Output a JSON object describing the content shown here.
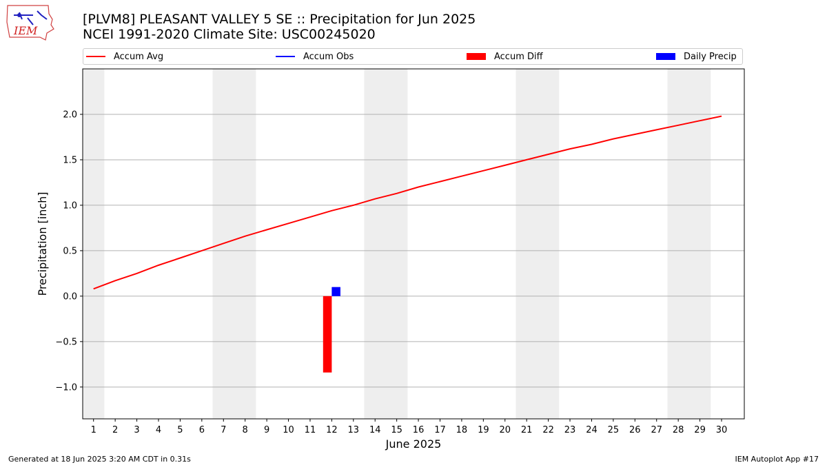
{
  "header": {
    "logo_text": "IEM",
    "title_line1": "[PLVM8] PLEASANT VALLEY 5 SE :: Precipitation for Jun 2025",
    "title_line2": "NCEI 1991-2020 Climate Site: USC00245020"
  },
  "legend": {
    "items": [
      {
        "label": "Accum Avg",
        "kind": "line",
        "color": "#ff0000"
      },
      {
        "label": "Accum Obs",
        "kind": "line",
        "color": "#0000ff"
      },
      {
        "label": "Accum Diff",
        "kind": "bar",
        "color": "#ff0000"
      },
      {
        "label": "Daily Precip",
        "kind": "bar",
        "color": "#0000ff"
      }
    ]
  },
  "chart_data": {
    "type": "line",
    "xlabel": "June 2025",
    "ylabel": "Precipitation [inch]",
    "ylim": [
      -1.35,
      2.5
    ],
    "yticks": [
      -1.0,
      -0.5,
      0.0,
      0.5,
      1.0,
      1.5,
      2.0
    ],
    "ytick_labels": [
      "−1.0",
      "−0.5",
      "0.0",
      "0.5",
      "1.0",
      "1.5",
      "2.0"
    ],
    "xlim": [
      0.5,
      31.05
    ],
    "days": [
      1,
      2,
      3,
      4,
      5,
      6,
      7,
      8,
      9,
      10,
      11,
      12,
      13,
      14,
      15,
      16,
      17,
      18,
      19,
      20,
      21,
      22,
      23,
      24,
      25,
      26,
      27,
      28,
      29,
      30
    ],
    "weekend_day_ranges": [
      [
        0.5,
        1.5
      ],
      [
        6.5,
        8.5
      ],
      [
        13.5,
        15.5
      ],
      [
        20.5,
        22.5
      ],
      [
        27.5,
        29.5
      ]
    ],
    "grid": "horizontal",
    "series": [
      {
        "name": "Accum Avg",
        "color": "#ff0000",
        "x": [
          1,
          2,
          3,
          4,
          5,
          6,
          7,
          8,
          9,
          10,
          11,
          12,
          13,
          14,
          15,
          16,
          17,
          18,
          19,
          20,
          21,
          22,
          23,
          24,
          25,
          26,
          27,
          28,
          29,
          30
        ],
        "values": [
          0.08,
          0.17,
          0.25,
          0.34,
          0.42,
          0.5,
          0.58,
          0.66,
          0.73,
          0.8,
          0.87,
          0.94,
          1.0,
          1.07,
          1.13,
          1.2,
          1.26,
          1.32,
          1.38,
          1.44,
          1.5,
          1.56,
          1.62,
          1.67,
          1.73,
          1.78,
          1.83,
          1.88,
          1.93,
          1.98
        ]
      },
      {
        "name": "Accum Obs",
        "color": "#0000ff",
        "x": [],
        "values": []
      }
    ],
    "bars": [
      {
        "name": "Accum Diff",
        "color": "#ff0000",
        "x": [
          11.8
        ],
        "values": [
          -0.84
        ]
      },
      {
        "name": "Daily Precip",
        "color": "#0000ff",
        "x": [
          12.2
        ],
        "values": [
          0.1
        ]
      }
    ]
  },
  "footer": {
    "left": "Generated at 18 Jun 2025 3:20 AM CDT in 0.31s",
    "right": "IEM Autoplot App #17"
  }
}
